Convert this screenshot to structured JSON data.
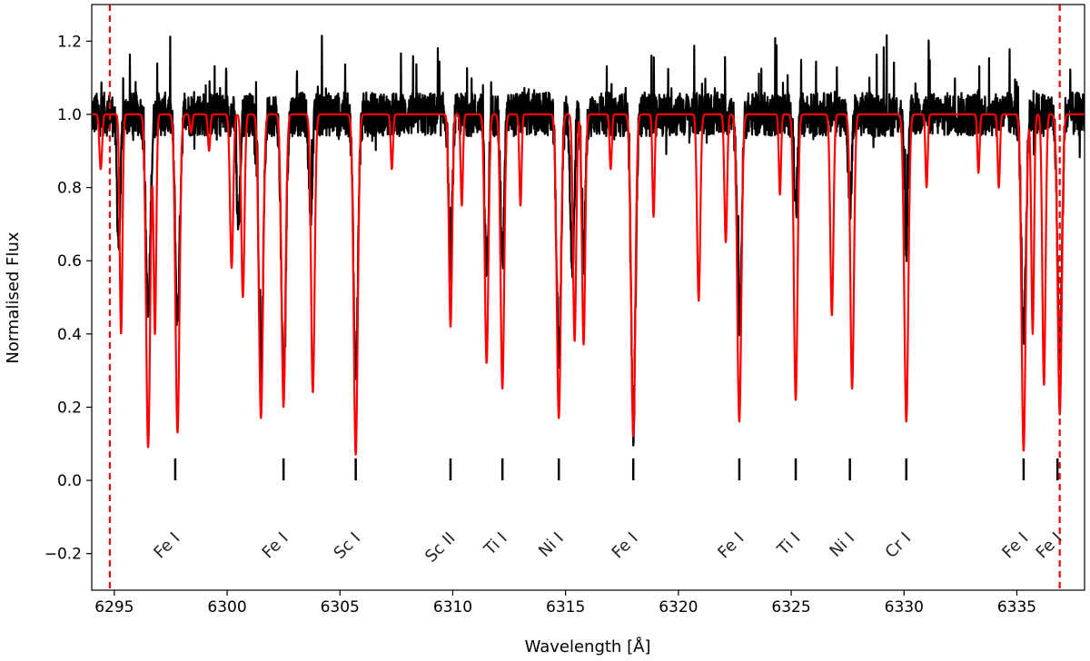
{
  "chart_data": {
    "type": "line",
    "title": "",
    "xlabel": "Wavelength [Å]",
    "ylabel": "Normalised Flux",
    "xlim": [
      6294,
      6338
    ],
    "ylim": [
      -0.3,
      1.3
    ],
    "x_ticks": [
      6295,
      6300,
      6305,
      6310,
      6315,
      6320,
      6325,
      6330,
      6335
    ],
    "y_ticks": [
      -0.2,
      0.0,
      0.2,
      0.4,
      0.6,
      0.8,
      1.0,
      1.2
    ],
    "x_tick_labels": [
      "6295",
      "6300",
      "6305",
      "6310",
      "6315",
      "6320",
      "6325",
      "6330",
      "6335"
    ],
    "y_tick_labels": [
      "−0.2",
      "0.0",
      "0.2",
      "0.4",
      "0.6",
      "0.8",
      "1.0",
      "1.2"
    ],
    "grid": false,
    "colors": {
      "observed": "#000000",
      "model": "#ff0000",
      "window": "#ff0000"
    },
    "window_limits": [
      6294.8,
      6336.9
    ],
    "series": [
      {
        "style": "black-noisy",
        "continuum": 1.0,
        "noise": 0.06,
        "absorption_lines": [
          {
            "x": 6295.2,
            "depth": 0.35,
            "width": 0.08
          },
          {
            "x": 6296.5,
            "depth": 0.55,
            "width": 0.1
          },
          {
            "x": 6297.8,
            "depth": 0.55,
            "width": 0.1
          },
          {
            "x": 6300.5,
            "depth": 0.3,
            "width": 0.08
          },
          {
            "x": 6301.5,
            "depth": 0.7,
            "width": 0.1
          },
          {
            "x": 6302.5,
            "depth": 0.75,
            "width": 0.1
          },
          {
            "x": 6303.7,
            "depth": 0.25,
            "width": 0.08
          },
          {
            "x": 6305.7,
            "depth": 0.7,
            "width": 0.1
          },
          {
            "x": 6309.9,
            "depth": 0.4,
            "width": 0.08
          },
          {
            "x": 6311.5,
            "depth": 0.45,
            "width": 0.08
          },
          {
            "x": 6312.2,
            "depth": 0.4,
            "width": 0.08
          },
          {
            "x": 6314.7,
            "depth": 0.65,
            "width": 0.1
          },
          {
            "x": 6315.3,
            "depth": 0.45,
            "width": 0.08
          },
          {
            "x": 6315.8,
            "depth": 0.4,
            "width": 0.08
          },
          {
            "x": 6318.0,
            "depth": 0.85,
            "width": 0.1
          },
          {
            "x": 6322.7,
            "depth": 0.55,
            "width": 0.1
          },
          {
            "x": 6325.2,
            "depth": 0.25,
            "width": 0.08
          },
          {
            "x": 6327.6,
            "depth": 0.25,
            "width": 0.08
          },
          {
            "x": 6330.1,
            "depth": 0.35,
            "width": 0.08
          },
          {
            "x": 6335.3,
            "depth": 0.6,
            "width": 0.1
          },
          {
            "x": 6336.9,
            "depth": 0.65,
            "width": 0.1
          }
        ]
      },
      {
        "style": "red-model",
        "continuum": 1.0,
        "absorption_lines": [
          {
            "x": 6294.4,
            "depth": 0.15,
            "width": 0.06
          },
          {
            "x": 6295.3,
            "depth": 0.6,
            "width": 0.06
          },
          {
            "x": 6296.5,
            "depth": 0.91,
            "width": 0.09
          },
          {
            "x": 6296.8,
            "depth": 0.6,
            "width": 0.06
          },
          {
            "x": 6297.8,
            "depth": 0.87,
            "width": 0.09
          },
          {
            "x": 6298.4,
            "depth": 0.05,
            "width": 0.05
          },
          {
            "x": 6299.2,
            "depth": 0.1,
            "width": 0.05
          },
          {
            "x": 6300.2,
            "depth": 0.42,
            "width": 0.07
          },
          {
            "x": 6300.7,
            "depth": 0.5,
            "width": 0.07
          },
          {
            "x": 6301.5,
            "depth": 0.83,
            "width": 0.09
          },
          {
            "x": 6302.5,
            "depth": 0.8,
            "width": 0.09
          },
          {
            "x": 6303.8,
            "depth": 0.76,
            "width": 0.08
          },
          {
            "x": 6305.7,
            "depth": 0.93,
            "width": 0.09
          },
          {
            "x": 6307.3,
            "depth": 0.15,
            "width": 0.05
          },
          {
            "x": 6309.9,
            "depth": 0.58,
            "width": 0.07
          },
          {
            "x": 6310.4,
            "depth": 0.25,
            "width": 0.05
          },
          {
            "x": 6311.5,
            "depth": 0.68,
            "width": 0.08
          },
          {
            "x": 6312.2,
            "depth": 0.75,
            "width": 0.08
          },
          {
            "x": 6313.0,
            "depth": 0.25,
            "width": 0.05
          },
          {
            "x": 6314.7,
            "depth": 0.83,
            "width": 0.09
          },
          {
            "x": 6315.4,
            "depth": 0.62,
            "width": 0.07
          },
          {
            "x": 6315.8,
            "depth": 0.63,
            "width": 0.07
          },
          {
            "x": 6317.0,
            "depth": 0.15,
            "width": 0.05
          },
          {
            "x": 6318.0,
            "depth": 0.88,
            "width": 0.09
          },
          {
            "x": 6318.9,
            "depth": 0.28,
            "width": 0.05
          },
          {
            "x": 6320.9,
            "depth": 0.51,
            "width": 0.07
          },
          {
            "x": 6322.1,
            "depth": 0.35,
            "width": 0.06
          },
          {
            "x": 6322.7,
            "depth": 0.84,
            "width": 0.09
          },
          {
            "x": 6324.5,
            "depth": 0.22,
            "width": 0.05
          },
          {
            "x": 6325.2,
            "depth": 0.78,
            "width": 0.08
          },
          {
            "x": 6326.8,
            "depth": 0.55,
            "width": 0.07
          },
          {
            "x": 6327.7,
            "depth": 0.75,
            "width": 0.08
          },
          {
            "x": 6330.1,
            "depth": 0.84,
            "width": 0.09
          },
          {
            "x": 6331.0,
            "depth": 0.2,
            "width": 0.05
          },
          {
            "x": 6333.3,
            "depth": 0.16,
            "width": 0.05
          },
          {
            "x": 6334.2,
            "depth": 0.2,
            "width": 0.05
          },
          {
            "x": 6335.3,
            "depth": 0.92,
            "width": 0.09
          },
          {
            "x": 6335.7,
            "depth": 0.6,
            "width": 0.06
          },
          {
            "x": 6336.2,
            "depth": 0.74,
            "width": 0.07
          },
          {
            "x": 6336.9,
            "depth": 0.82,
            "width": 0.09
          }
        ]
      }
    ],
    "line_markers": {
      "y_low": 0.0,
      "y_high": 0.06,
      "items": [
        {
          "x": 6297.7,
          "label": "Fe I"
        },
        {
          "x": 6302.5,
          "label": "Fe I"
        },
        {
          "x": 6305.7,
          "label": "Sc I"
        },
        {
          "x": 6309.9,
          "label": "Sc II"
        },
        {
          "x": 6312.2,
          "label": "Ti I"
        },
        {
          "x": 6314.7,
          "label": "Ni I"
        },
        {
          "x": 6318.0,
          "label": "Fe I"
        },
        {
          "x": 6322.7,
          "label": "Fe I"
        },
        {
          "x": 6325.2,
          "label": "Ti I"
        },
        {
          "x": 6327.6,
          "label": "Ni I"
        },
        {
          "x": 6330.1,
          "label": "Cr I"
        },
        {
          "x": 6335.3,
          "label": "Fe I"
        },
        {
          "x": 6336.8,
          "label": "Fe I"
        }
      ]
    }
  }
}
